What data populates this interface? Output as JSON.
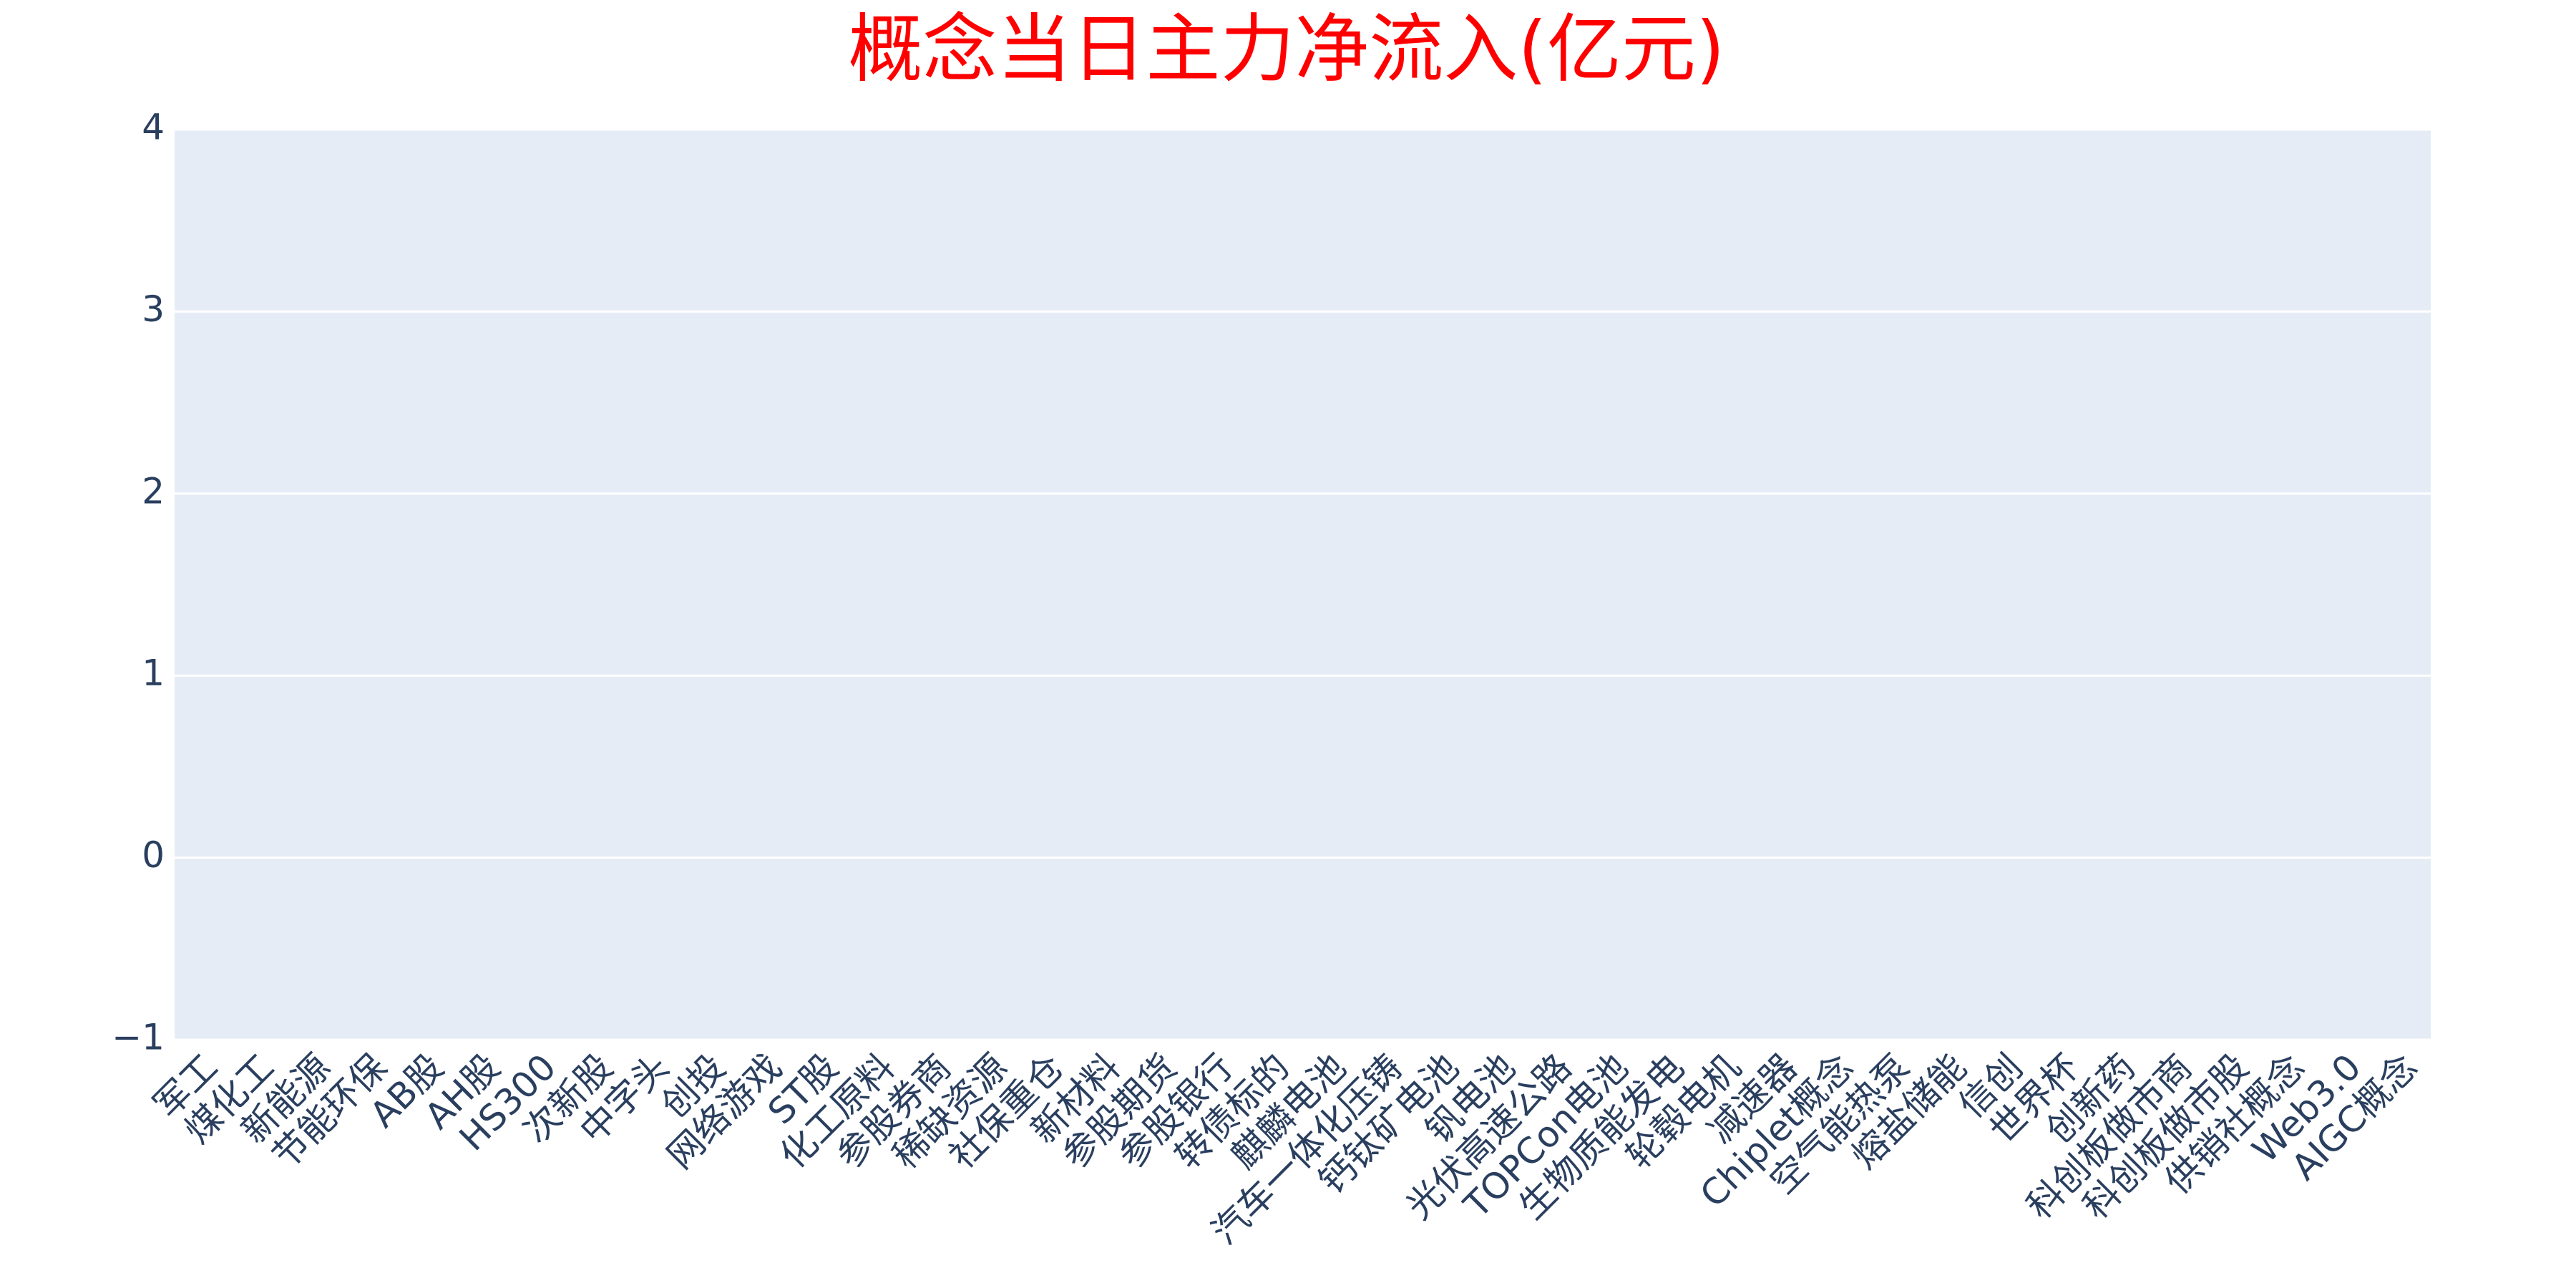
{
  "chart_data": {
    "type": "bar",
    "title": "概念当日主力净流入(亿元)",
    "categories": [
      "军工",
      "煤化工",
      "新能源",
      "节能环保",
      "AB股",
      "AH股",
      "HS300",
      "次新股",
      "中字头",
      "创投",
      "网络游戏",
      "ST股",
      "化工原料",
      "参股券商",
      "稀缺资源",
      "社保重仓",
      "新材料",
      "参股期货",
      "参股银行",
      "转债标的",
      "麒麟电池",
      "汽车一体化压铸",
      "钙钛矿电池",
      "钒电池",
      "光伏高速公路",
      "TOPCon电池",
      "生物质能发电",
      "轮毂电机",
      "减速器",
      "Chiplet概念",
      "空气能热泵",
      "熔盐储能",
      "信创",
      "世界杯",
      "创新药",
      "科创板做市商",
      "科创板做市股",
      "供销社概念",
      "Web3.0",
      "AIGC概念"
    ],
    "values": [
      null,
      null,
      null,
      null,
      null,
      null,
      null,
      null,
      null,
      null,
      null,
      null,
      null,
      null,
      null,
      null,
      null,
      null,
      null,
      null,
      null,
      null,
      null,
      null,
      null,
      null,
      null,
      null,
      null,
      null,
      null,
      null,
      null,
      null,
      null,
      null,
      null,
      null,
      null,
      null
    ],
    "color": "#636efa",
    "title_color": "#ff0000",
    "ylim": [
      -1,
      4
    ],
    "yticks": [
      {
        "value": -1,
        "label": "−1"
      },
      0,
      1,
      2,
      3,
      4
    ],
    "grid": true
  }
}
